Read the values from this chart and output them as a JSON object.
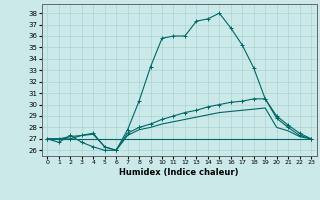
{
  "title": "",
  "xlabel": "Humidex (Indice chaleur)",
  "ylabel": "",
  "background_color": "#cce9e9",
  "grid_color": "#aad4d4",
  "line_color": "#006666",
  "xlim": [
    -0.5,
    23.5
  ],
  "ylim": [
    25.5,
    38.8
  ],
  "yticks": [
    26,
    27,
    28,
    29,
    30,
    31,
    32,
    33,
    34,
    35,
    36,
    37,
    38
  ],
  "xticks": [
    0,
    1,
    2,
    3,
    4,
    5,
    6,
    7,
    8,
    9,
    10,
    11,
    12,
    13,
    14,
    15,
    16,
    17,
    18,
    19,
    20,
    21,
    22,
    23
  ],
  "series": [
    {
      "x": [
        0,
        1,
        2,
        3,
        4,
        5,
        6,
        7,
        8,
        9,
        10,
        11,
        12,
        13,
        14,
        15,
        16,
        17,
        18,
        19,
        20,
        21,
        22,
        23
      ],
      "y": [
        27.0,
        26.7,
        27.3,
        26.7,
        26.3,
        26.0,
        26.0,
        27.8,
        30.3,
        33.3,
        35.8,
        36.0,
        36.0,
        37.3,
        37.5,
        38.0,
        36.7,
        35.2,
        33.2,
        30.5,
        29.0,
        28.2,
        27.5,
        27.0
      ],
      "marker": true
    },
    {
      "x": [
        0,
        1,
        2,
        3,
        4,
        5,
        6,
        7,
        8,
        9,
        10,
        11,
        12,
        13,
        14,
        15,
        16,
        17,
        18,
        19,
        20,
        21,
        22,
        23
      ],
      "y": [
        27.0,
        27.0,
        27.0,
        27.3,
        27.5,
        26.3,
        26.0,
        27.5,
        28.0,
        28.3,
        28.7,
        29.0,
        29.3,
        29.5,
        29.8,
        30.0,
        30.2,
        30.3,
        30.5,
        30.5,
        28.8,
        28.0,
        27.3,
        27.0
      ],
      "marker": true
    },
    {
      "x": [
        0,
        1,
        2,
        3,
        4,
        5,
        6,
        7,
        8,
        9,
        10,
        11,
        12,
        13,
        14,
        15,
        16,
        17,
        18,
        19,
        20,
        21,
        22,
        23
      ],
      "y": [
        27.0,
        27.0,
        27.2,
        27.3,
        27.4,
        26.3,
        26.0,
        27.3,
        27.8,
        28.0,
        28.3,
        28.5,
        28.7,
        28.9,
        29.1,
        29.3,
        29.4,
        29.5,
        29.6,
        29.7,
        28.0,
        27.7,
        27.2,
        27.0
      ],
      "marker": false
    },
    {
      "x": [
        0,
        1,
        2,
        3,
        4,
        5,
        6,
        7,
        8,
        9,
        10,
        11,
        12,
        13,
        14,
        15,
        16,
        17,
        18,
        19,
        20,
        21,
        22,
        23
      ],
      "y": [
        27.0,
        27.0,
        27.0,
        27.0,
        27.0,
        27.0,
        27.0,
        27.0,
        27.0,
        27.0,
        27.0,
        27.0,
        27.0,
        27.0,
        27.0,
        27.0,
        27.0,
        27.0,
        27.0,
        27.0,
        27.0,
        27.0,
        27.0,
        27.0
      ],
      "marker": false
    }
  ]
}
